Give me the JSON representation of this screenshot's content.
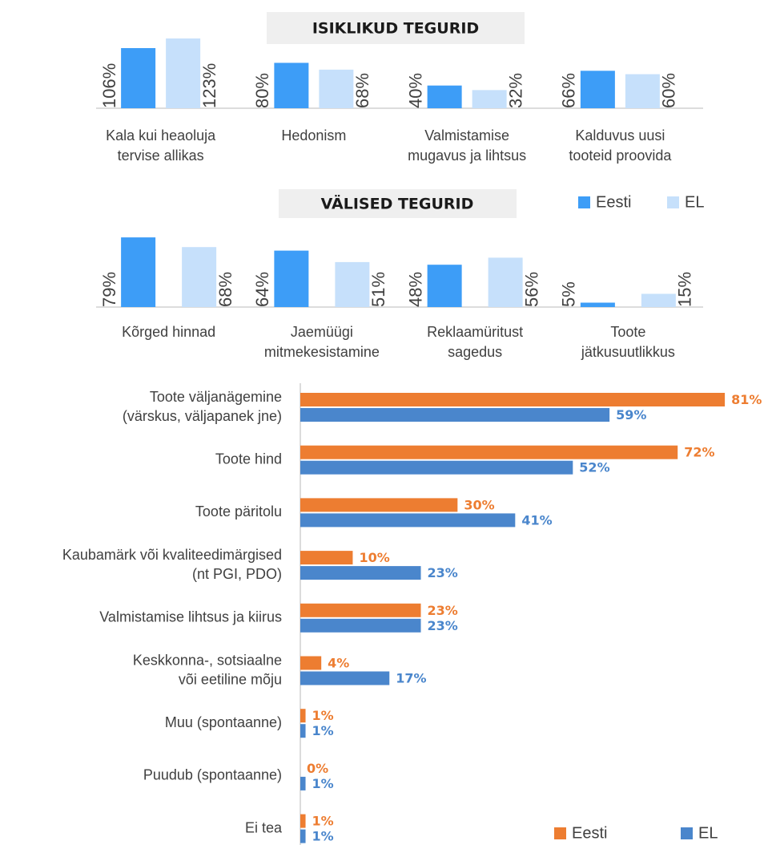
{
  "chart_data": [
    {
      "type": "bar",
      "title": "ISIKLIKUD TEGURID",
      "categories": [
        "Kala kui heaoluja\ntervise allikas",
        "Hedonism",
        "Valmistamise\nmugavus ja lihtsus",
        "Kalduvus uusi\ntooteid proovida"
      ],
      "series": [
        {
          "color": "#3d9df7",
          "values": [
            106,
            80,
            40,
            66
          ],
          "value_labels": [
            "106%",
            "80%",
            "40%",
            "66%"
          ]
        },
        {
          "color": "#c6e0fb",
          "values": [
            123,
            68,
            32,
            60
          ],
          "value_labels": [
            "123%",
            "68%",
            "32%",
            "60%"
          ]
        }
      ],
      "ylim": [
        0,
        130
      ]
    },
    {
      "type": "bar",
      "title": "VÄLISED TEGURID",
      "categories": [
        "Kõrged hinnad",
        "Jaemüügi\nmitmekesistamine",
        "Reklaamüritust\nsagedus",
        "Toote\njätkusuutlikkus"
      ],
      "series": [
        {
          "name": "Eesti",
          "color": "#3d9df7",
          "values": [
            79,
            64,
            48,
            5
          ],
          "value_labels": [
            "79%",
            "64%",
            "48%",
            "5%"
          ]
        },
        {
          "name": "EL",
          "color": "#c6e0fb",
          "values": [
            68,
            51,
            56,
            15
          ],
          "value_labels": [
            "68%",
            "51%",
            "56%",
            "15%"
          ]
        }
      ],
      "ylim": [
        0,
        85
      ],
      "legend": "top-right"
    },
    {
      "type": "barh",
      "categories": [
        "Toote väljanägemine\n(värskus, väljapanek jne)",
        "Toote hind",
        "Toote päritolu",
        "Kaubamärk või kvaliteedimärgised\n(nt PGI, PDO)",
        "Valmistamise lihtsus ja kiirus",
        "Keskkonna-, sotsiaalne\nvõi eetiline mõju",
        "Muu (spontaanne)",
        "Puudub (spontaanne)",
        "Ei tea"
      ],
      "series": [
        {
          "name": "Eesti",
          "color": "#ed7d31",
          "values": [
            81,
            72,
            30,
            10,
            23,
            4,
            1,
            0,
            1
          ],
          "value_labels": [
            "81%",
            "72%",
            "30%",
            "10%",
            "23%",
            "4%",
            "1%",
            "0%",
            "1%"
          ]
        },
        {
          "name": "EL",
          "color": "#4a86cc",
          "values": [
            59,
            52,
            41,
            23,
            23,
            17,
            1,
            1,
            1
          ],
          "value_labels": [
            "59%",
            "52%",
            "41%",
            "23%",
            "23%",
            "17%",
            "1%",
            "1%",
            "1%"
          ]
        }
      ],
      "xlim": [
        0,
        90
      ],
      "legend": "bottom-right"
    }
  ]
}
